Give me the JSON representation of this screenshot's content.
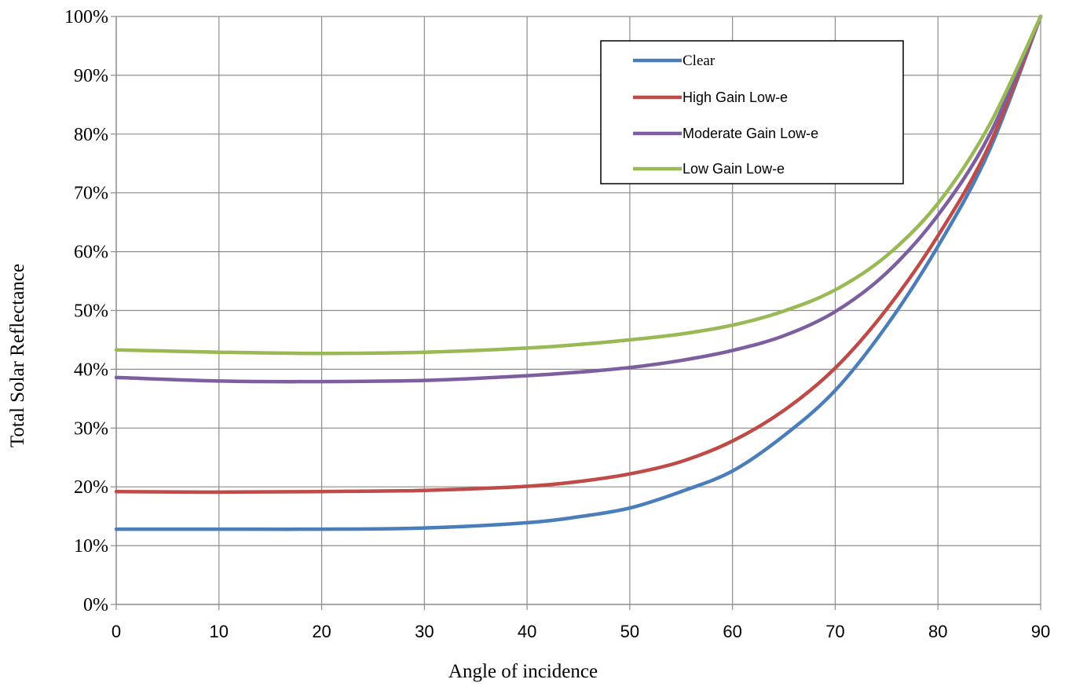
{
  "chart_data": {
    "type": "line",
    "title": "",
    "xlabel": "Angle of incidence",
    "ylabel": "Total Solar Reflectance",
    "xlim": [
      0,
      90
    ],
    "ylim": [
      0,
      100
    ],
    "x_ticks": [
      "0",
      "10",
      "20",
      "30",
      "40",
      "50",
      "60",
      "70",
      "80",
      "90"
    ],
    "y_ticks": [
      "0%",
      "10%",
      "20%",
      "30%",
      "40%",
      "50%",
      "60%",
      "70%",
      "80%",
      "90%",
      "100%"
    ],
    "grid": true,
    "legend_position": "top-right",
    "x": [
      0,
      10,
      20,
      30,
      40,
      45,
      50,
      55,
      60,
      65,
      70,
      75,
      80,
      85,
      90
    ],
    "series": [
      {
        "name": "Clear",
        "color": "#4a7ebb",
        "values": [
          12.8,
          12.8,
          12.8,
          13.0,
          13.9,
          14.9,
          16.4,
          19.2,
          22.7,
          28.7,
          36.4,
          47.4,
          60.9,
          77.2,
          100
        ]
      },
      {
        "name": "High Gain Low-e",
        "color": "#be4b48",
        "values": [
          19.2,
          19.1,
          19.2,
          19.4,
          20.1,
          20.9,
          22.2,
          24.3,
          27.8,
          33.0,
          40.2,
          50.2,
          62.7,
          78.1,
          100
        ]
      },
      {
        "name": "Moderate Gain Low-e",
        "color": "#7d5fa0",
        "values": [
          38.6,
          38.0,
          37.9,
          38.1,
          38.9,
          39.5,
          40.3,
          41.5,
          43.2,
          45.7,
          49.8,
          56.4,
          66.2,
          79.8,
          100
        ]
      },
      {
        "name": "Low Gain Low-e",
        "color": "#98b954",
        "values": [
          43.3,
          42.9,
          42.7,
          42.9,
          43.6,
          44.2,
          45.0,
          46.0,
          47.5,
          49.9,
          53.5,
          59.3,
          68.2,
          81.5,
          100
        ]
      }
    ]
  }
}
